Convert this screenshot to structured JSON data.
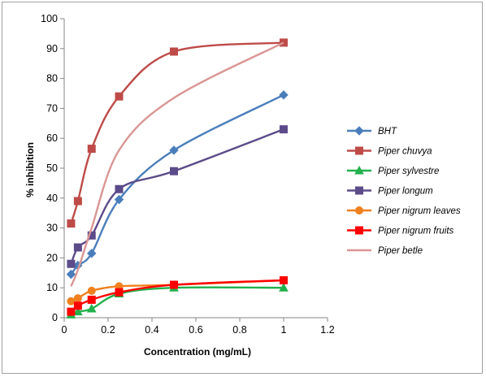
{
  "chart_data": {
    "type": "line",
    "xlabel": "Concentration (mg/mL)",
    "ylabel": "% inhibition",
    "xlim": [
      0,
      1.2
    ],
    "ylim": [
      0,
      100
    ],
    "xticks": [
      "0",
      "0.2",
      "0.4",
      "0.6",
      "0.8",
      "1",
      "1.2"
    ],
    "yticks": [
      "0",
      "10",
      "20",
      "30",
      "40",
      "50",
      "60",
      "70",
      "80",
      "90",
      "100"
    ],
    "legend_position": "right",
    "grid": false,
    "series": [
      {
        "name": "BHT",
        "color": "#4a7ebb",
        "marker": "diamond",
        "x": [
          0.03125,
          0.0625,
          0.125,
          0.25,
          0.5,
          1
        ],
        "y": [
          14.5,
          17.5,
          21.5,
          39.5,
          56,
          74.5
        ]
      },
      {
        "name": "Piper chuvya",
        "color": "#be4b48",
        "marker": "square",
        "x": [
          0.03125,
          0.0625,
          0.125,
          0.25,
          0.5,
          1
        ],
        "y": [
          31.5,
          39,
          56.5,
          74,
          89,
          92
        ]
      },
      {
        "name": "Piper sylvestre",
        "color": "#22b14c",
        "marker": "triangle",
        "x": [
          0.03125,
          0.0625,
          0.125,
          0.25,
          0.5,
          1
        ],
        "y": [
          1,
          2,
          3,
          8,
          10,
          10
        ]
      },
      {
        "name": "Piper longum",
        "color": "#5c4b8a",
        "marker": "square",
        "x": [
          0.03125,
          0.0625,
          0.125,
          0.25,
          0.5,
          1
        ],
        "y": [
          18,
          23.5,
          27.5,
          43,
          49,
          63
        ]
      },
      {
        "name": "Piper nigrum leaves",
        "color": "#f07f1e",
        "marker": "circle",
        "x": [
          0.03125,
          0.0625,
          0.125,
          0.25,
          0.5,
          1
        ],
        "y": [
          5.5,
          6.5,
          9,
          10.5,
          11,
          12.5
        ]
      },
      {
        "name": "Piper nigrum fruits",
        "color": "#ff0000",
        "marker": "square",
        "x": [
          0.03125,
          0.0625,
          0.125,
          0.25,
          0.5,
          1
        ],
        "y": [
          2,
          4,
          6,
          8.5,
          11,
          12.5
        ]
      },
      {
        "name": "Piper betle",
        "color": "#d99694",
        "marker": "none",
        "x": [
          0.03125,
          0.0625,
          0.125,
          0.25,
          0.5,
          1
        ],
        "y": [
          10.5,
          16,
          30,
          56,
          73.5,
          92
        ]
      }
    ]
  }
}
